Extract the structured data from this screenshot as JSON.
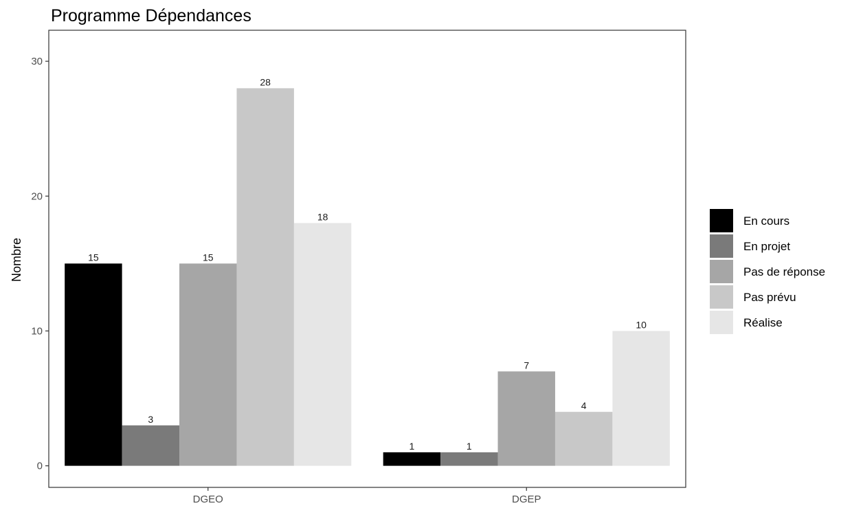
{
  "chart_data": {
    "type": "bar",
    "title": "Programme Dépendances",
    "xlabel": "",
    "ylabel": "Nombre",
    "categories": [
      "DGEO",
      "DGEP"
    ],
    "series": [
      {
        "name": "En cours",
        "color": "#000000",
        "values": [
          15,
          1
        ]
      },
      {
        "name": "En projet",
        "color": "#7a7a7a",
        "values": [
          3,
          1
        ]
      },
      {
        "name": "Pas de réponse",
        "color": "#a6a6a6",
        "values": [
          15,
          7
        ]
      },
      {
        "name": "Pas prévu",
        "color": "#c8c8c8",
        "values": [
          28,
          4
        ]
      },
      {
        "name": "Réalise",
        "color": "#e6e6e6",
        "values": [
          18,
          10
        ]
      }
    ],
    "ylim": [
      -1.6,
      32.3
    ],
    "yticks": [
      0,
      10,
      20,
      30
    ],
    "grid": false,
    "legend_position": "right"
  }
}
